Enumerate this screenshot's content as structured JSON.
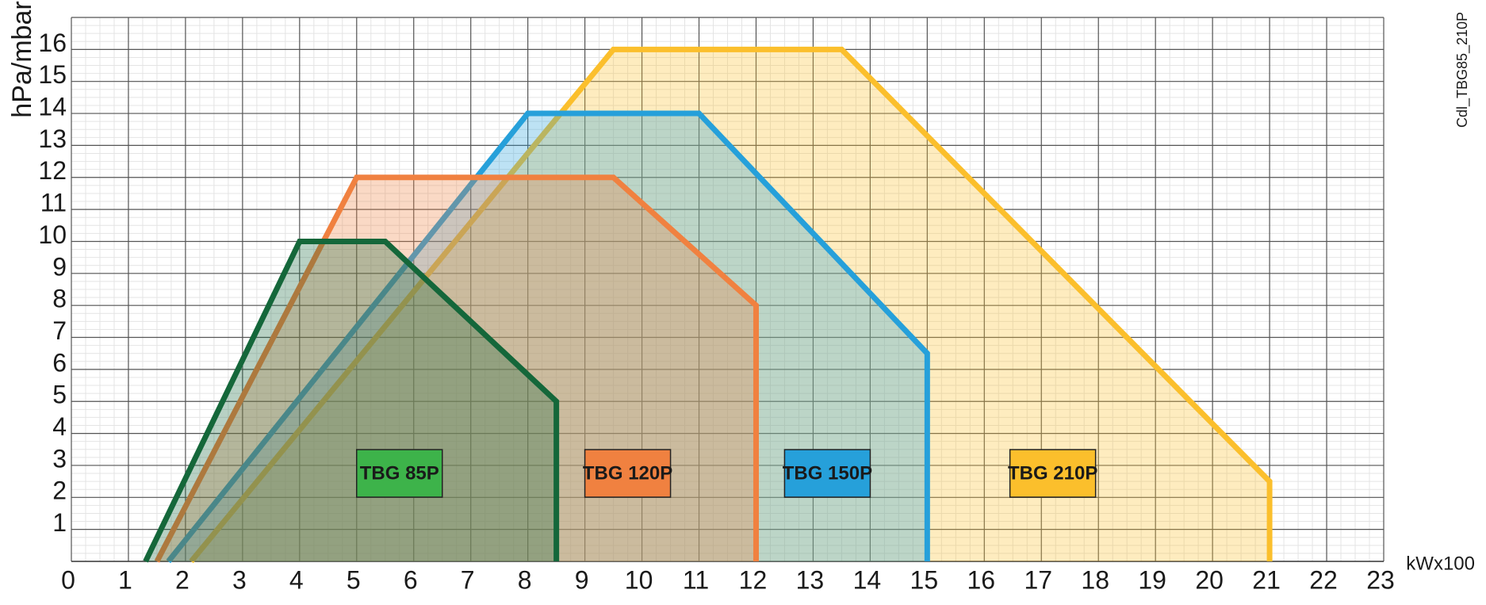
{
  "chart_data": {
    "type": "area",
    "y_label": "hPa/mbar",
    "x_label": "kWx100",
    "note": "Cdl_TBG85_210P",
    "xlim": [
      0,
      23
    ],
    "ylim": [
      0,
      17
    ],
    "xticks": [
      0,
      1,
      2,
      3,
      4,
      5,
      6,
      7,
      8,
      9,
      10,
      11,
      12,
      13,
      14,
      15,
      16,
      17,
      18,
      19,
      20,
      21,
      22,
      23
    ],
    "yticks": [
      1,
      2,
      3,
      4,
      5,
      6,
      7,
      8,
      9,
      10,
      11,
      12,
      13,
      14,
      15,
      16
    ],
    "grid": true,
    "series": [
      {
        "name": "TBG 85P",
        "color": "#14673a",
        "label_color": "#3db34a",
        "x": [
          1.3,
          4,
          5.5,
          8.5,
          8.5
        ],
        "values": [
          0,
          10,
          10,
          5,
          0
        ]
      },
      {
        "name": "TBG 120P",
        "color": "#f08140",
        "label_color": "#f08140",
        "x": [
          1.5,
          5,
          9.5,
          12,
          12
        ],
        "values": [
          0,
          12,
          12,
          8,
          0
        ]
      },
      {
        "name": "TBG 150P",
        "color": "#26a0da",
        "label_color": "#26a0da",
        "x": [
          1.7,
          8,
          11,
          15,
          15
        ],
        "values": [
          0,
          14,
          14,
          6.5,
          0
        ]
      },
      {
        "name": "TBG 210P",
        "color": "#fbbf2c",
        "label_color": "#fbbf2c",
        "x": [
          2.1,
          9.5,
          13.5,
          21,
          21
        ],
        "values": [
          0,
          16,
          16,
          2.5,
          0
        ]
      }
    ]
  }
}
